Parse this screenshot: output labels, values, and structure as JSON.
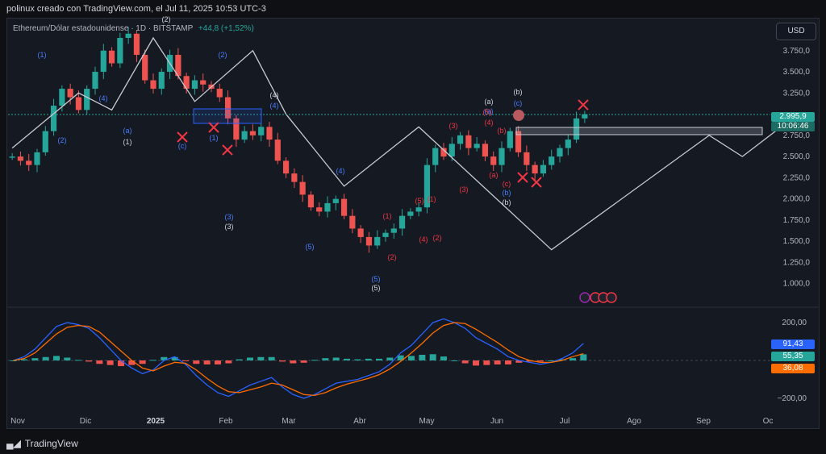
{
  "header": {
    "text": "polinux creado con TradingView.com, el Jul 11, 2025 10:53 UTC-3"
  },
  "symbol": {
    "name": "Ethereum/Dólar estadounidense · 1D · BITSTAMP",
    "change": "+44,8 (+1,52%)"
  },
  "currency_button": "USD",
  "footer": {
    "brand": "TradingView"
  },
  "price_tags": {
    "last_price": "2.995,9",
    "countdown": "10:06:46"
  },
  "macd_tags": {
    "macd": "91,43",
    "histogram": "55,35",
    "signal": "36,08"
  },
  "colors": {
    "bull": "#26a69a",
    "bear": "#ef5350",
    "wave_line": "#c8cbd2",
    "blue_wave": "#2962ff",
    "red_wave": "#f23645",
    "macd_line": "#2962ff",
    "signal_line": "#ff6d00",
    "price_tag_bg": "#26a69a"
  },
  "chart_data": [
    {
      "type": "line",
      "title": "Ethereum/Dólar estadounidense · 1D · BITSTAMP",
      "ylim": [
        750,
        4100
      ],
      "yticks": [
        "3.750,0",
        "3.500,0",
        "3.250,0",
        "2.750,0",
        "2.500,0",
        "2.250,0",
        "2.000,0",
        "1.750,0",
        "1.500,0",
        "1.250,0",
        "1.000,0"
      ],
      "ytick_values": [
        3750,
        3500,
        3250,
        2750,
        2500,
        2250,
        2000,
        1750,
        1500,
        1250,
        1000
      ],
      "xticks": [
        "Nov",
        "Dic",
        "2025",
        "Feb",
        "Mar",
        "Abr",
        "May",
        "Jun",
        "Jul",
        "Ago",
        "Sep",
        "Oc"
      ],
      "series": [
        {
          "values": [
            2500,
            2450,
            2400,
            2550,
            2800,
            3100,
            3300,
            3200,
            3050,
            3300,
            3500,
            3750,
            3600,
            3900,
            3950,
            3700,
            3400,
            3300,
            3500,
            3700,
            3450,
            3300,
            3400,
            3350,
            3300,
            3200,
            2950,
            2700,
            2800,
            2750,
            2850,
            2700,
            2450,
            2300,
            2200,
            2050,
            1900,
            1850,
            1950,
            2000,
            1800,
            1650,
            1550,
            1450,
            1550,
            1600,
            1650,
            1800,
            1850,
            1900,
            2400,
            2600,
            2500,
            2650,
            2750,
            2600,
            2650,
            2500,
            2400,
            2600,
            2800,
            2550,
            2400,
            2300,
            2400,
            2500,
            2600,
            2700,
            2950,
            3000
          ]
        }
      ],
      "wave_path": [
        [
          0,
          2600
        ],
        [
          8,
          3250
        ],
        [
          12,
          3050
        ],
        [
          17,
          3900
        ],
        [
          22,
          3150
        ],
        [
          29,
          3750
        ],
        [
          33,
          3000
        ],
        [
          40,
          2150
        ],
        [
          49,
          2850
        ],
        [
          65,
          1400
        ],
        [
          84,
          2750
        ],
        [
          88,
          2500
        ],
        [
          92,
          2800
        ]
      ],
      "current_price": 2995.9
    },
    {
      "type": "line",
      "yticks": [
        "200,00",
        "−200,00"
      ],
      "ytick_values": [
        200,
        -200
      ],
      "ylim": [
        -260,
        260
      ],
      "series": [
        {
          "values": [
            0,
            20,
            60,
            120,
            180,
            200,
            190,
            170,
            120,
            60,
            0,
            -40,
            -70,
            -50,
            0,
            20,
            -20,
            -80,
            -130,
            -170,
            -190,
            -160,
            -130,
            -110,
            -90,
            -140,
            -180,
            -200,
            -180,
            -150,
            -120,
            -110,
            -100,
            -80,
            -60,
            -20,
            40,
            80,
            140,
            200,
            220,
            200,
            170,
            120,
            90,
            60,
            20,
            0,
            -10,
            -20,
            -10,
            10,
            40,
            90
          ]
        },
        {
          "values": [
            0,
            10,
            40,
            90,
            140,
            175,
            185,
            180,
            150,
            100,
            50,
            0,
            -40,
            -55,
            -30,
            -10,
            -15,
            -50,
            -95,
            -135,
            -165,
            -170,
            -155,
            -140,
            -120,
            -130,
            -155,
            -180,
            -185,
            -170,
            -145,
            -125,
            -110,
            -95,
            -75,
            -45,
            -5,
            40,
            90,
            145,
            185,
            200,
            195,
            165,
            130,
            95,
            55,
            20,
            0,
            -10,
            -10,
            0,
            20,
            36
          ]
        }
      ]
    }
  ],
  "wave_labels_white": [
    "(2)",
    "(4)",
    "(a)",
    "(b)",
    "(c)",
    "(1)",
    "(3)",
    "(5)",
    "(b)"
  ],
  "wave_labels_blue": [
    "(1)",
    "(2)",
    "(4)",
    "(a)",
    "(c)",
    "(1)",
    "(2)",
    "(3)",
    "(4)",
    "(5)",
    "(5)",
    "(4)",
    "(a)",
    "(b)",
    "(c)"
  ],
  "wave_labels_red": [
    "(1)",
    "(2)",
    "(3)",
    "(4)",
    "(5)",
    "(a)",
    "(b)",
    "(c)",
    "(1)",
    "(2)",
    "(3)",
    "(4)",
    "(5)"
  ]
}
